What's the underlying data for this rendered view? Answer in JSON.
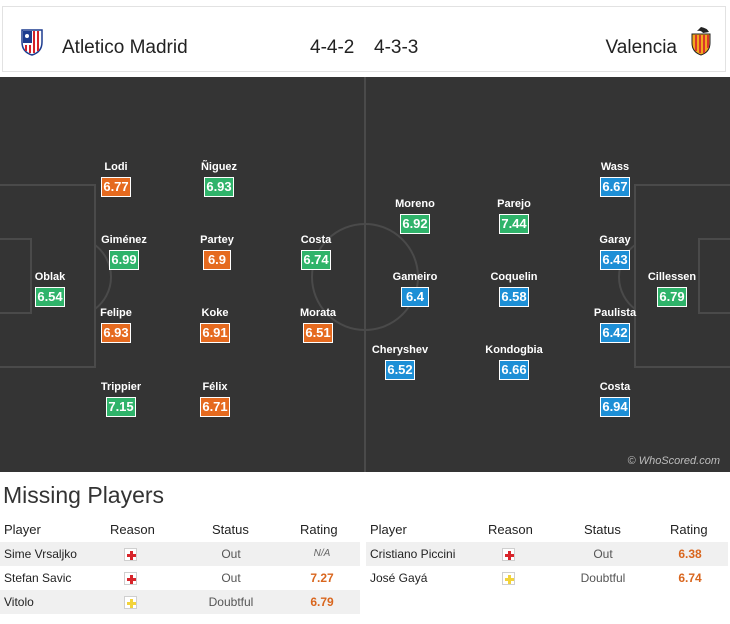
{
  "header": {
    "home_team": "Atletico Madrid",
    "away_team": "Valencia",
    "home_formation": "4-4-2",
    "away_formation": "4-3-3",
    "home_crest_icon": "atletico-crest",
    "away_crest_icon": "valencia-crest"
  },
  "colors": {
    "pitch": "#343434",
    "rating_good": "#2fb36a",
    "rating_average": "#e56a1f",
    "rating_away": "#1d8fd6"
  },
  "pitch": {
    "watermark": "© WhoScored.com",
    "home_players": [
      {
        "name": "Lodi",
        "rating": "6.77",
        "tone": "orange"
      },
      {
        "name": "Ñiguez",
        "rating": "6.93",
        "tone": "green"
      },
      {
        "name": "Giménez",
        "rating": "6.99",
        "tone": "green"
      },
      {
        "name": "Partey",
        "rating": "6.9",
        "tone": "orange"
      },
      {
        "name": "Costa",
        "rating": "6.74",
        "tone": "green"
      },
      {
        "name": "Oblak",
        "rating": "6.54",
        "tone": "green"
      },
      {
        "name": "Felipe",
        "rating": "6.93",
        "tone": "orange"
      },
      {
        "name": "Koke",
        "rating": "6.91",
        "tone": "orange"
      },
      {
        "name": "Morata",
        "rating": "6.51",
        "tone": "orange"
      },
      {
        "name": "Trippier",
        "rating": "7.15",
        "tone": "green"
      },
      {
        "name": "Félix",
        "rating": "6.71",
        "tone": "orange"
      }
    ],
    "away_players": [
      {
        "name": "Moreno",
        "rating": "6.92",
        "tone": "green"
      },
      {
        "name": "Parejo",
        "rating": "7.44",
        "tone": "green"
      },
      {
        "name": "Wass",
        "rating": "6.67",
        "tone": "blue"
      },
      {
        "name": "Gameiro",
        "rating": "6.4",
        "tone": "blue"
      },
      {
        "name": "Coquelin",
        "rating": "6.58",
        "tone": "blue"
      },
      {
        "name": "Garay",
        "rating": "6.43",
        "tone": "blue"
      },
      {
        "name": "Cillessen",
        "rating": "6.79",
        "tone": "green"
      },
      {
        "name": "Paulista",
        "rating": "6.42",
        "tone": "blue"
      },
      {
        "name": "Cheryshev",
        "rating": "6.52",
        "tone": "blue"
      },
      {
        "name": "Kondogbia",
        "rating": "6.66",
        "tone": "blue"
      },
      {
        "name": "Costa",
        "rating": "6.94",
        "tone": "blue"
      }
    ]
  },
  "missing": {
    "title": "Missing Players",
    "columns": {
      "player": "Player",
      "reason": "Reason",
      "status": "Status",
      "rating": "Rating"
    },
    "home": [
      {
        "player": "Sime Vrsaljko",
        "reason_icon": "injury-icon",
        "status": "Out",
        "rating": "N/A"
      },
      {
        "player": "Stefan Savic",
        "reason_icon": "injury-icon",
        "status": "Out",
        "rating": "7.27"
      },
      {
        "player": "Vitolo",
        "reason_icon": "doubtful-icon",
        "status": "Doubtful",
        "rating": "6.79"
      }
    ],
    "away": [
      {
        "player": "Cristiano Piccini",
        "reason_icon": "injury-icon",
        "status": "Out",
        "rating": "6.38"
      },
      {
        "player": "José Gayá",
        "reason_icon": "doubtful-icon",
        "status": "Doubtful",
        "rating": "6.74"
      }
    ]
  }
}
